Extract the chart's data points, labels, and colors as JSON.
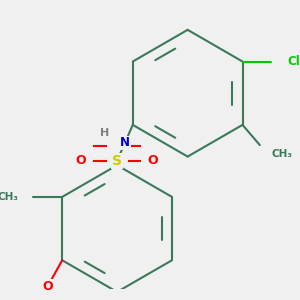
{
  "background_color": "#f0f0f0",
  "bond_color": "#3a7a5a",
  "bond_width": 1.5,
  "dbo": 0.035,
  "atom_colors": {
    "S": "#cccc00",
    "O": "#ff0000",
    "N": "#0000cd",
    "H": "#808080",
    "Cl": "#00cc00",
    "C": "#3a7a5a"
  }
}
